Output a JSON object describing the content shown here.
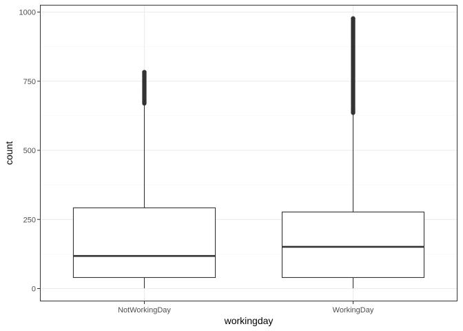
{
  "chart_data": {
    "type": "box",
    "title": "",
    "xlabel": "workingday",
    "ylabel": "count",
    "ylim": [
      -45,
      1000
    ],
    "yticks": [
      0,
      250,
      500,
      750,
      1000
    ],
    "grid": true,
    "categories": [
      "NotWorkingDay",
      "WorkingDay"
    ],
    "boxes": [
      {
        "category": "NotWorkingDay",
        "min": 1,
        "q1": 40,
        "median": 118,
        "q3": 292,
        "whisker_high": 668,
        "outliers_range": [
          670,
          783
        ]
      },
      {
        "category": "WorkingDay",
        "min": 1,
        "q1": 40,
        "median": 151,
        "q3": 277,
        "whisker_high": 634,
        "outliers_range": [
          636,
          977
        ]
      }
    ],
    "colors": {
      "box_stroke": "#333333",
      "box_fill": "#ffffff",
      "outlier": "#333333",
      "grid_major": "#ebebeb",
      "grid_minor": "#f5f5f5",
      "panel_border": "#333333",
      "tick_text": "#4d4d4d"
    }
  }
}
